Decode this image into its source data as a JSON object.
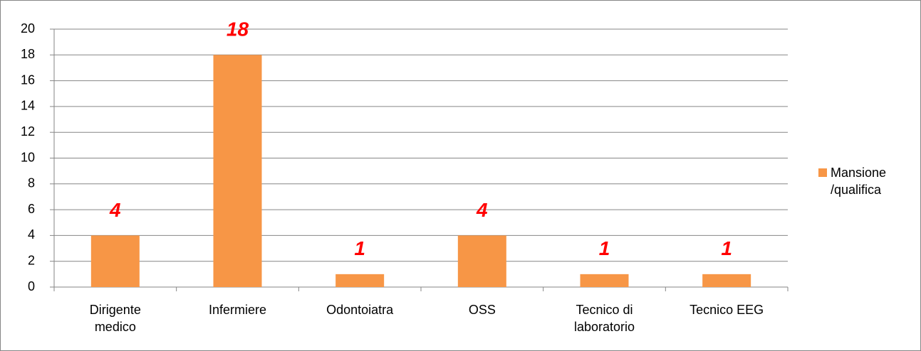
{
  "chart_data": {
    "type": "bar",
    "categories": [
      "Dirigente medico",
      "Infermiere",
      "Odontoiatra",
      "OSS",
      "Tecnico di laboratorio",
      "Tecnico EEG"
    ],
    "series": [
      {
        "name": "Mansione /qualifica",
        "color": "#f79646",
        "values": [
          4,
          18,
          1,
          4,
          1,
          1
        ]
      }
    ],
    "ylim": [
      0,
      20
    ],
    "yticks": [
      0,
      2,
      4,
      6,
      8,
      10,
      12,
      14,
      16,
      18,
      20
    ],
    "grid": true,
    "legend": "right",
    "value_label_color": "#ff0000"
  }
}
